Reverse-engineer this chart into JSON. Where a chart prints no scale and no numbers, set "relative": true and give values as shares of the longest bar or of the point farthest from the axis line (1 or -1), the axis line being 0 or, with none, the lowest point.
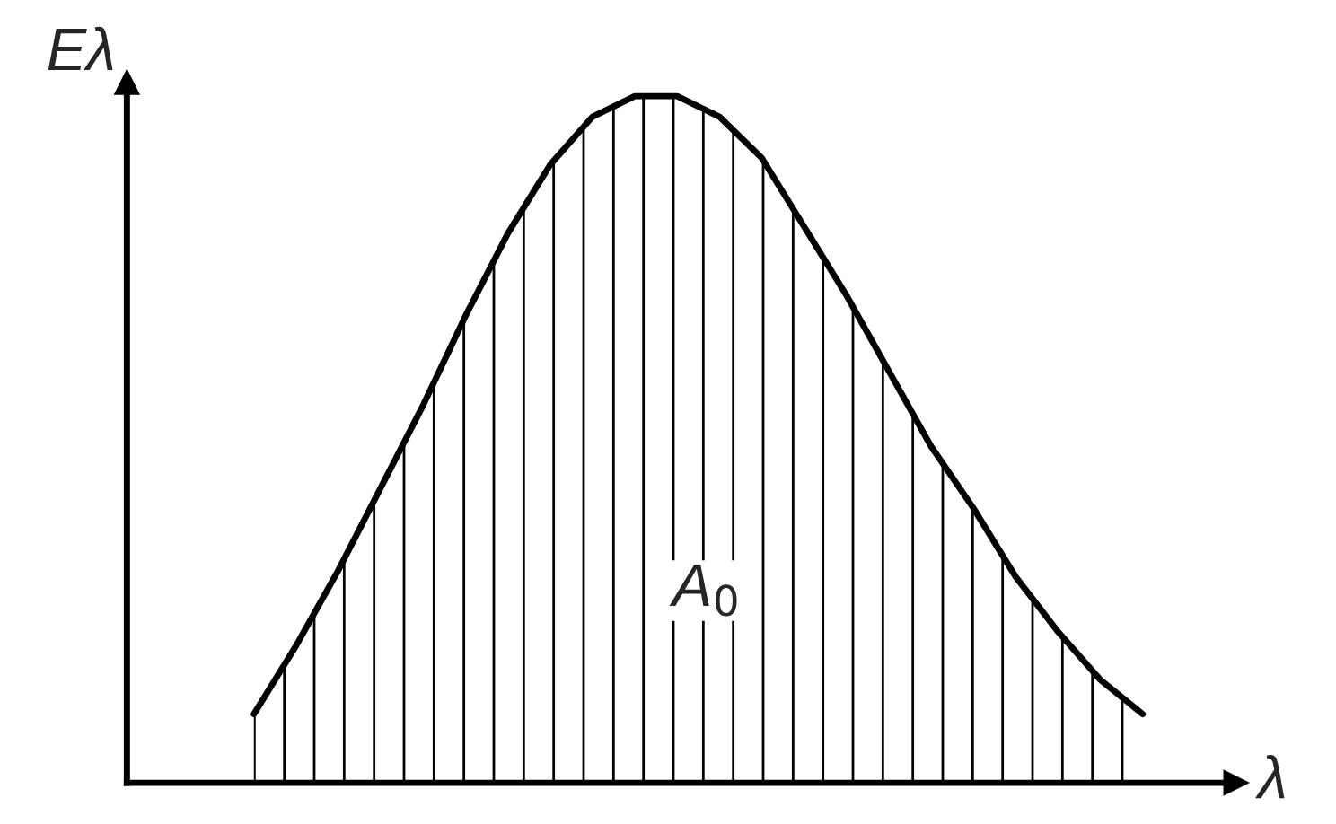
{
  "chart_data": {
    "type": "area",
    "relative": true,
    "xlabel": "λ",
    "ylabel": "Eλ",
    "categories": [
      null,
      null,
      null,
      null,
      null,
      null,
      null,
      null,
      null,
      null,
      null,
      null,
      null,
      null,
      null,
      null,
      null,
      null,
      null,
      null,
      null,
      null
    ],
    "series": [
      {
        "color": "#000000",
        "values": [
          0.1,
          0.2,
          0.31,
          0.43,
          0.55,
          0.68,
          0.8,
          0.9,
          0.97,
          1.0,
          1.0,
          0.97,
          0.91,
          0.81,
          0.71,
          0.6,
          0.49,
          0.4,
          0.3,
          0.22,
          0.15,
          0.1
        ]
      }
    ],
    "annotations": [
      "A$_{0}$"
    ],
    "grid": false,
    "legend": false
  }
}
